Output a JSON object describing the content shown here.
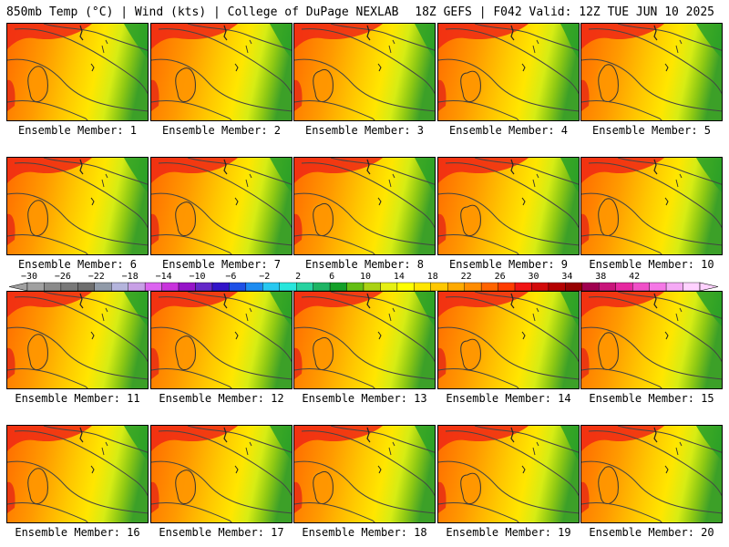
{
  "header": {
    "left": "850mb Temp (°C) | Wind (kts) | College of DuPage NEXLAB",
    "right": "18Z GEFS | F042 Valid: 12Z TUE JUN 10 2025"
  },
  "members": [
    {
      "label": "Ensemble Member: 1"
    },
    {
      "label": "Ensemble Member: 2"
    },
    {
      "label": "Ensemble Member: 3"
    },
    {
      "label": "Ensemble Member: 4"
    },
    {
      "label": "Ensemble Member: 5"
    },
    {
      "label": "Ensemble Member: 6"
    },
    {
      "label": "Ensemble Member: 7"
    },
    {
      "label": "Ensemble Member: 8"
    },
    {
      "label": "Ensemble Member: 9"
    },
    {
      "label": "Ensemble Member: 10"
    },
    {
      "label": "Ensemble Member: 11"
    },
    {
      "label": "Ensemble Member: 12"
    },
    {
      "label": "Ensemble Member: 13"
    },
    {
      "label": "Ensemble Member: 14"
    },
    {
      "label": "Ensemble Member: 15"
    },
    {
      "label": "Ensemble Member: 16"
    },
    {
      "label": "Ensemble Member: 17"
    },
    {
      "label": "Ensemble Member: 18"
    },
    {
      "label": "Ensemble Member: 19"
    },
    {
      "label": "Ensemble Member: 20"
    }
  ],
  "colorbar": {
    "tick_labels": [
      "−30",
      "−26",
      "−22",
      "−18",
      "−14",
      "−10",
      "−6",
      "−2",
      "2",
      "6",
      "10",
      "14",
      "18",
      "22",
      "26",
      "30",
      "34",
      "38",
      "42"
    ],
    "colors": [
      "#a0a0a0",
      "#8a8a8a",
      "#787878",
      "#6e6e6e",
      "#909aa8",
      "#b4b4dc",
      "#c8a0e6",
      "#dc64f0",
      "#c832dc",
      "#9614c8",
      "#6428c8",
      "#3214c8",
      "#1e50e6",
      "#1e8cf0",
      "#28c8f0",
      "#28e6dc",
      "#28d2a0",
      "#1eb464",
      "#14a028",
      "#64be14",
      "#aad214",
      "#e6f014",
      "#ffff00",
      "#ffe600",
      "#ffc800",
      "#ffaa00",
      "#ff8c00",
      "#ff6400",
      "#ff3c00",
      "#f01414",
      "#d20a0a",
      "#b40000",
      "#960000",
      "#a00050",
      "#c8147a",
      "#e628a0",
      "#f050c8",
      "#f578e6",
      "#f5aaf5",
      "#ffd2ff"
    ]
  }
}
